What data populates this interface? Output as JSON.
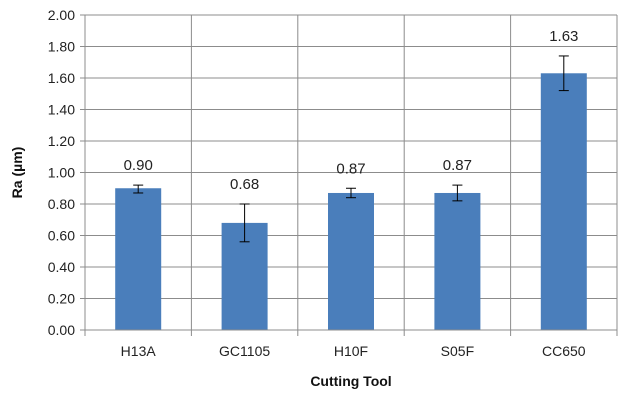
{
  "chart_data": {
    "type": "bar",
    "xlabel": "Cutting Tool",
    "ylabel": "Ra (µm)",
    "ylim": [
      0,
      2.0
    ],
    "ytick_step": 0.2,
    "ytick_labels": [
      "0.00",
      "0.20",
      "0.40",
      "0.60",
      "0.80",
      "1.00",
      "1.20",
      "1.40",
      "1.60",
      "1.80",
      "2.00"
    ],
    "grid": true,
    "categories": [
      "H13A",
      "GC1105",
      "H10F",
      "S05F",
      "CC650"
    ],
    "values": [
      0.9,
      0.68,
      0.87,
      0.87,
      1.63
    ],
    "value_labels": [
      "0.90",
      "0.68",
      "0.87",
      "0.87",
      "1.63"
    ],
    "error_low": [
      0.87,
      0.56,
      0.84,
      0.82,
      1.52
    ],
    "error_high": [
      0.92,
      0.8,
      0.9,
      0.92,
      1.74
    ],
    "bar_color": "#4a7ebb",
    "grid_color": "#8c8c8c"
  }
}
